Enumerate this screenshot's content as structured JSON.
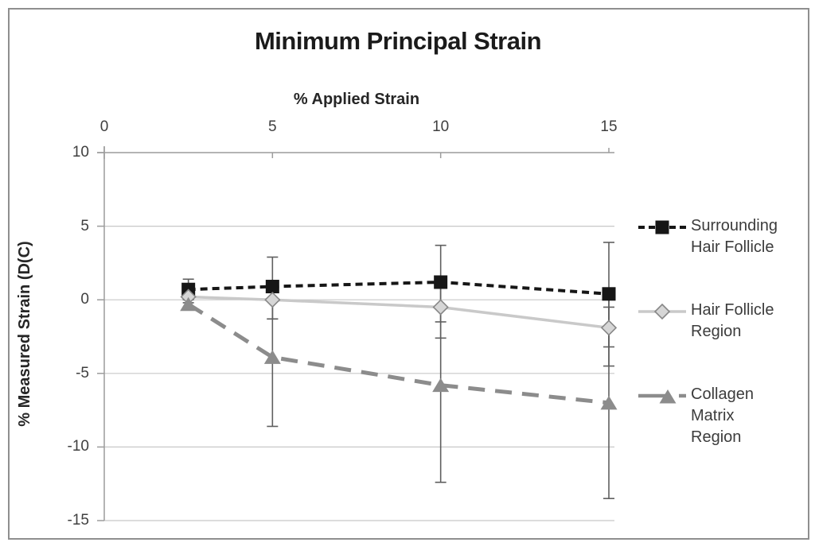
{
  "chart_data": {
    "type": "line",
    "title": "Minimum Principal Strain",
    "xlabel": "% Applied Strain",
    "ylabel": "% Measured Strain (D(C)",
    "xlim": [
      0,
      15
    ],
    "ylim": [
      -15,
      10
    ],
    "x_ticks": [
      0,
      5,
      10,
      15
    ],
    "y_ticks": [
      10,
      5,
      0,
      -5,
      -10,
      -15
    ],
    "grid": "horizontal",
    "legend_position": "right",
    "error_bar_color": "#5f5f5f",
    "grid_color": "#c8c8c8",
    "axis_color": "#9c9c9c",
    "x": [
      2.5,
      5,
      10,
      15
    ],
    "series": [
      {
        "name": "Surrounding Hair Follicle",
        "label_lines": [
          "Surrounding",
          "Hair Follicle"
        ],
        "marker": "square",
        "line_style": "dashed-short",
        "color": "#161616",
        "marker_fill": "#161616",
        "marker_stroke": "#161616",
        "values": [
          0.7,
          0.9,
          1.2,
          0.4
        ],
        "error_low": [
          0.0,
          -1.3,
          -1.5,
          -3.2
        ],
        "error_high": [
          1.4,
          2.9,
          3.7,
          3.9
        ]
      },
      {
        "name": "Hair Follicle Region",
        "label_lines": [
          "Hair Follicle",
          "Region"
        ],
        "marker": "diamond",
        "line_style": "solid",
        "color": "#c9c9c9",
        "marker_fill": "#d6d6d6",
        "marker_stroke": "#878787",
        "values": [
          0.2,
          0.0,
          -0.5,
          -1.9
        ],
        "error_low": [
          -0.2,
          -1.3,
          -2.6,
          -4.5
        ],
        "error_high": [
          0.6,
          1.3,
          1.6,
          0.7
        ]
      },
      {
        "name": "Collagen Matrix Region",
        "label_lines": [
          "Collagen",
          "Matrix",
          "Region"
        ],
        "marker": "triangle",
        "line_style": "dashed-long",
        "color": "#8c8c8c",
        "marker_fill": "#8c8c8c",
        "marker_stroke": "#8c8c8c",
        "values": [
          -0.3,
          -3.9,
          -5.8,
          -7.0
        ],
        "error_low": [
          -0.7,
          -8.6,
          -12.4,
          -13.5
        ],
        "error_high": [
          0.1,
          0.8,
          0.8,
          -0.5
        ]
      }
    ]
  }
}
